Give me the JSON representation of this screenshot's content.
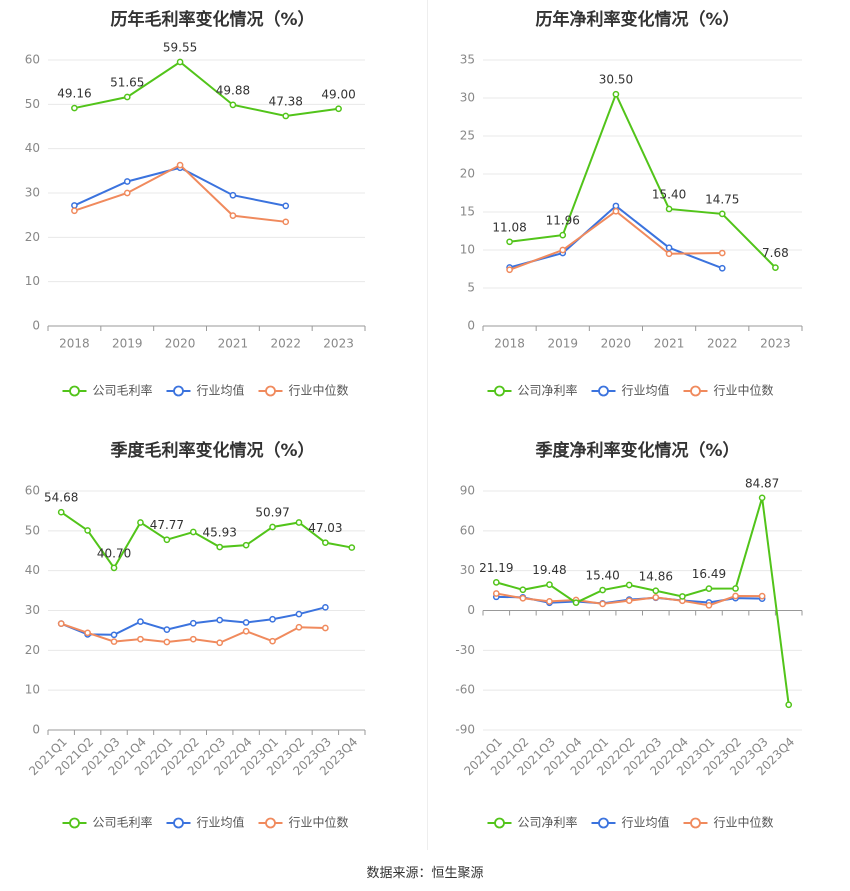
{
  "source_label": "数据来源：恒生聚源",
  "colors": {
    "company": "#52c41a",
    "avg": "#3b73de",
    "median": "#f08a5d",
    "grid": "#e8e8e8",
    "axis": "#999999"
  },
  "chart_data": [
    {
      "type": "line",
      "title": "历年毛利率变化情况（%）",
      "categories": [
        "2018",
        "2019",
        "2020",
        "2021",
        "2022",
        "2023"
      ],
      "ylim": [
        0,
        60
      ],
      "yticks": [
        0,
        10,
        20,
        30,
        40,
        50,
        60
      ],
      "legend": "bottom",
      "grid": true,
      "series": [
        {
          "name": "公司毛利率",
          "key": "company",
          "labels": true,
          "values": [
            49.16,
            51.65,
            59.55,
            49.88,
            47.38,
            49.0
          ]
        },
        {
          "name": "行业均值",
          "key": "avg",
          "labels": false,
          "values": [
            27.2,
            32.6,
            35.7,
            29.5,
            27.1,
            null
          ]
        },
        {
          "name": "行业中位数",
          "key": "median",
          "labels": false,
          "values": [
            26.0,
            30.0,
            36.3,
            24.9,
            23.5,
            null
          ]
        }
      ],
      "data_labels": [
        "49.16",
        "51.65",
        "59.55",
        "49.88",
        "47.38",
        "49.00"
      ]
    },
    {
      "type": "line",
      "title": "历年净利率变化情况（%）",
      "categories": [
        "2018",
        "2019",
        "2020",
        "2021",
        "2022",
        "2023"
      ],
      "ylim": [
        0,
        35
      ],
      "yticks": [
        0,
        5,
        10,
        15,
        20,
        25,
        30,
        35
      ],
      "legend": "bottom",
      "grid": true,
      "series": [
        {
          "name": "公司净利率",
          "key": "company",
          "labels": true,
          "values": [
            11.08,
            11.96,
            30.5,
            15.4,
            14.75,
            7.68
          ]
        },
        {
          "name": "行业均值",
          "key": "avg",
          "labels": false,
          "values": [
            7.7,
            9.6,
            15.8,
            10.3,
            7.6,
            null
          ]
        },
        {
          "name": "行业中位数",
          "key": "median",
          "labels": false,
          "values": [
            7.4,
            10.0,
            15.1,
            9.5,
            9.6,
            null
          ]
        }
      ],
      "data_labels": [
        "11.08",
        "11.96",
        "30.50",
        "15.40",
        "14.75",
        "7.68"
      ]
    },
    {
      "type": "line",
      "title": "季度毛利率变化情况（%）",
      "categories": [
        "2021Q1",
        "2021Q2",
        "2021Q3",
        "2021Q4",
        "2022Q1",
        "2022Q2",
        "2022Q3",
        "2022Q4",
        "2023Q1",
        "2023Q2",
        "2023Q3",
        "2023Q4"
      ],
      "ylim": [
        0,
        60
      ],
      "yticks": [
        0,
        10,
        20,
        30,
        40,
        50,
        60
      ],
      "legend": "bottom",
      "grid": true,
      "series": [
        {
          "name": "公司毛利率",
          "key": "company",
          "labels": true,
          "values": [
            54.68,
            50.1,
            40.7,
            52.1,
            47.77,
            49.7,
            45.93,
            46.4,
            50.97,
            52.1,
            47.03,
            45.8
          ]
        },
        {
          "name": "行业均值",
          "key": "avg",
          "labels": false,
          "values": [
            26.7,
            24.0,
            23.9,
            27.2,
            25.2,
            26.8,
            27.6,
            27.0,
            27.8,
            29.1,
            30.8,
            null
          ]
        },
        {
          "name": "行业中位数",
          "key": "median",
          "labels": false,
          "values": [
            26.7,
            24.4,
            22.2,
            22.8,
            22.1,
            22.8,
            21.9,
            24.8,
            22.3,
            25.8,
            25.6,
            null
          ]
        }
      ],
      "data_labels": [
        "54.68",
        "",
        "40.70",
        "",
        "47.77",
        "",
        "45.93",
        "",
        "50.97",
        "",
        "47.03",
        ""
      ]
    },
    {
      "type": "line",
      "title": "季度净利率变化情况（%）",
      "categories": [
        "2021Q1",
        "2021Q2",
        "2021Q3",
        "2021Q4",
        "2022Q1",
        "2022Q2",
        "2022Q3",
        "2022Q4",
        "2023Q1",
        "2023Q2",
        "2023Q3",
        "2023Q4"
      ],
      "ylim": [
        -90,
        90
      ],
      "yticks": [
        -90,
        -60,
        -30,
        0,
        30,
        60,
        90
      ],
      "legend": "bottom",
      "grid": true,
      "series": [
        {
          "name": "公司净利率",
          "key": "company",
          "labels": true,
          "values": [
            21.19,
            15.6,
            19.48,
            5.9,
            15.4,
            19.2,
            14.86,
            10.6,
            16.49,
            16.6,
            84.87,
            -71.0
          ]
        },
        {
          "name": "行业均值",
          "key": "avg",
          "labels": false,
          "values": [
            10.3,
            9.9,
            5.8,
            6.8,
            5.4,
            8.2,
            9.6,
            7.5,
            6.0,
            9.3,
            8.9,
            null
          ]
        },
        {
          "name": "行业中位数",
          "key": "median",
          "labels": false,
          "values": [
            12.8,
            9.2,
            6.9,
            7.9,
            5.0,
            7.4,
            9.9,
            7.3,
            3.9,
            10.9,
            10.8,
            null
          ]
        }
      ],
      "data_labels": [
        "21.19",
        "",
        "19.48",
        "",
        "15.40",
        "",
        "14.86",
        "",
        "16.49",
        "",
        "84.87",
        ""
      ]
    }
  ]
}
